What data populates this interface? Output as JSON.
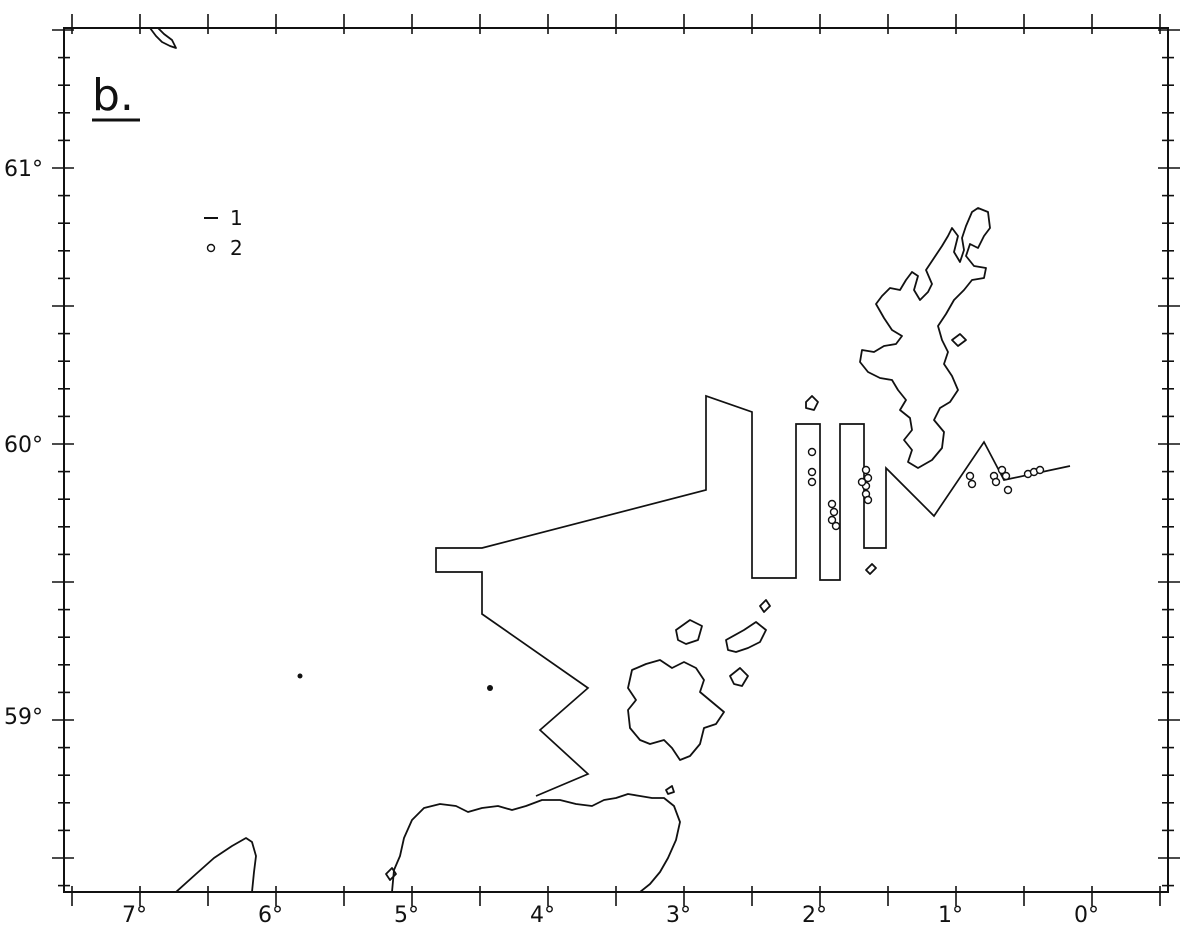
{
  "panel_label": "b.",
  "legend": {
    "items": [
      {
        "symbol": "line",
        "label": "1"
      },
      {
        "symbol": "circle",
        "label": "2"
      }
    ]
  },
  "axes": {
    "longitude_labels": [
      "7°",
      "6°",
      "5°",
      "4°",
      "3°",
      "2°",
      "1°",
      "0°"
    ],
    "latitude_labels": [
      "61°",
      "60°",
      "59°"
    ]
  },
  "colors": {
    "ink": "#111111",
    "paper": "#ffffff"
  }
}
